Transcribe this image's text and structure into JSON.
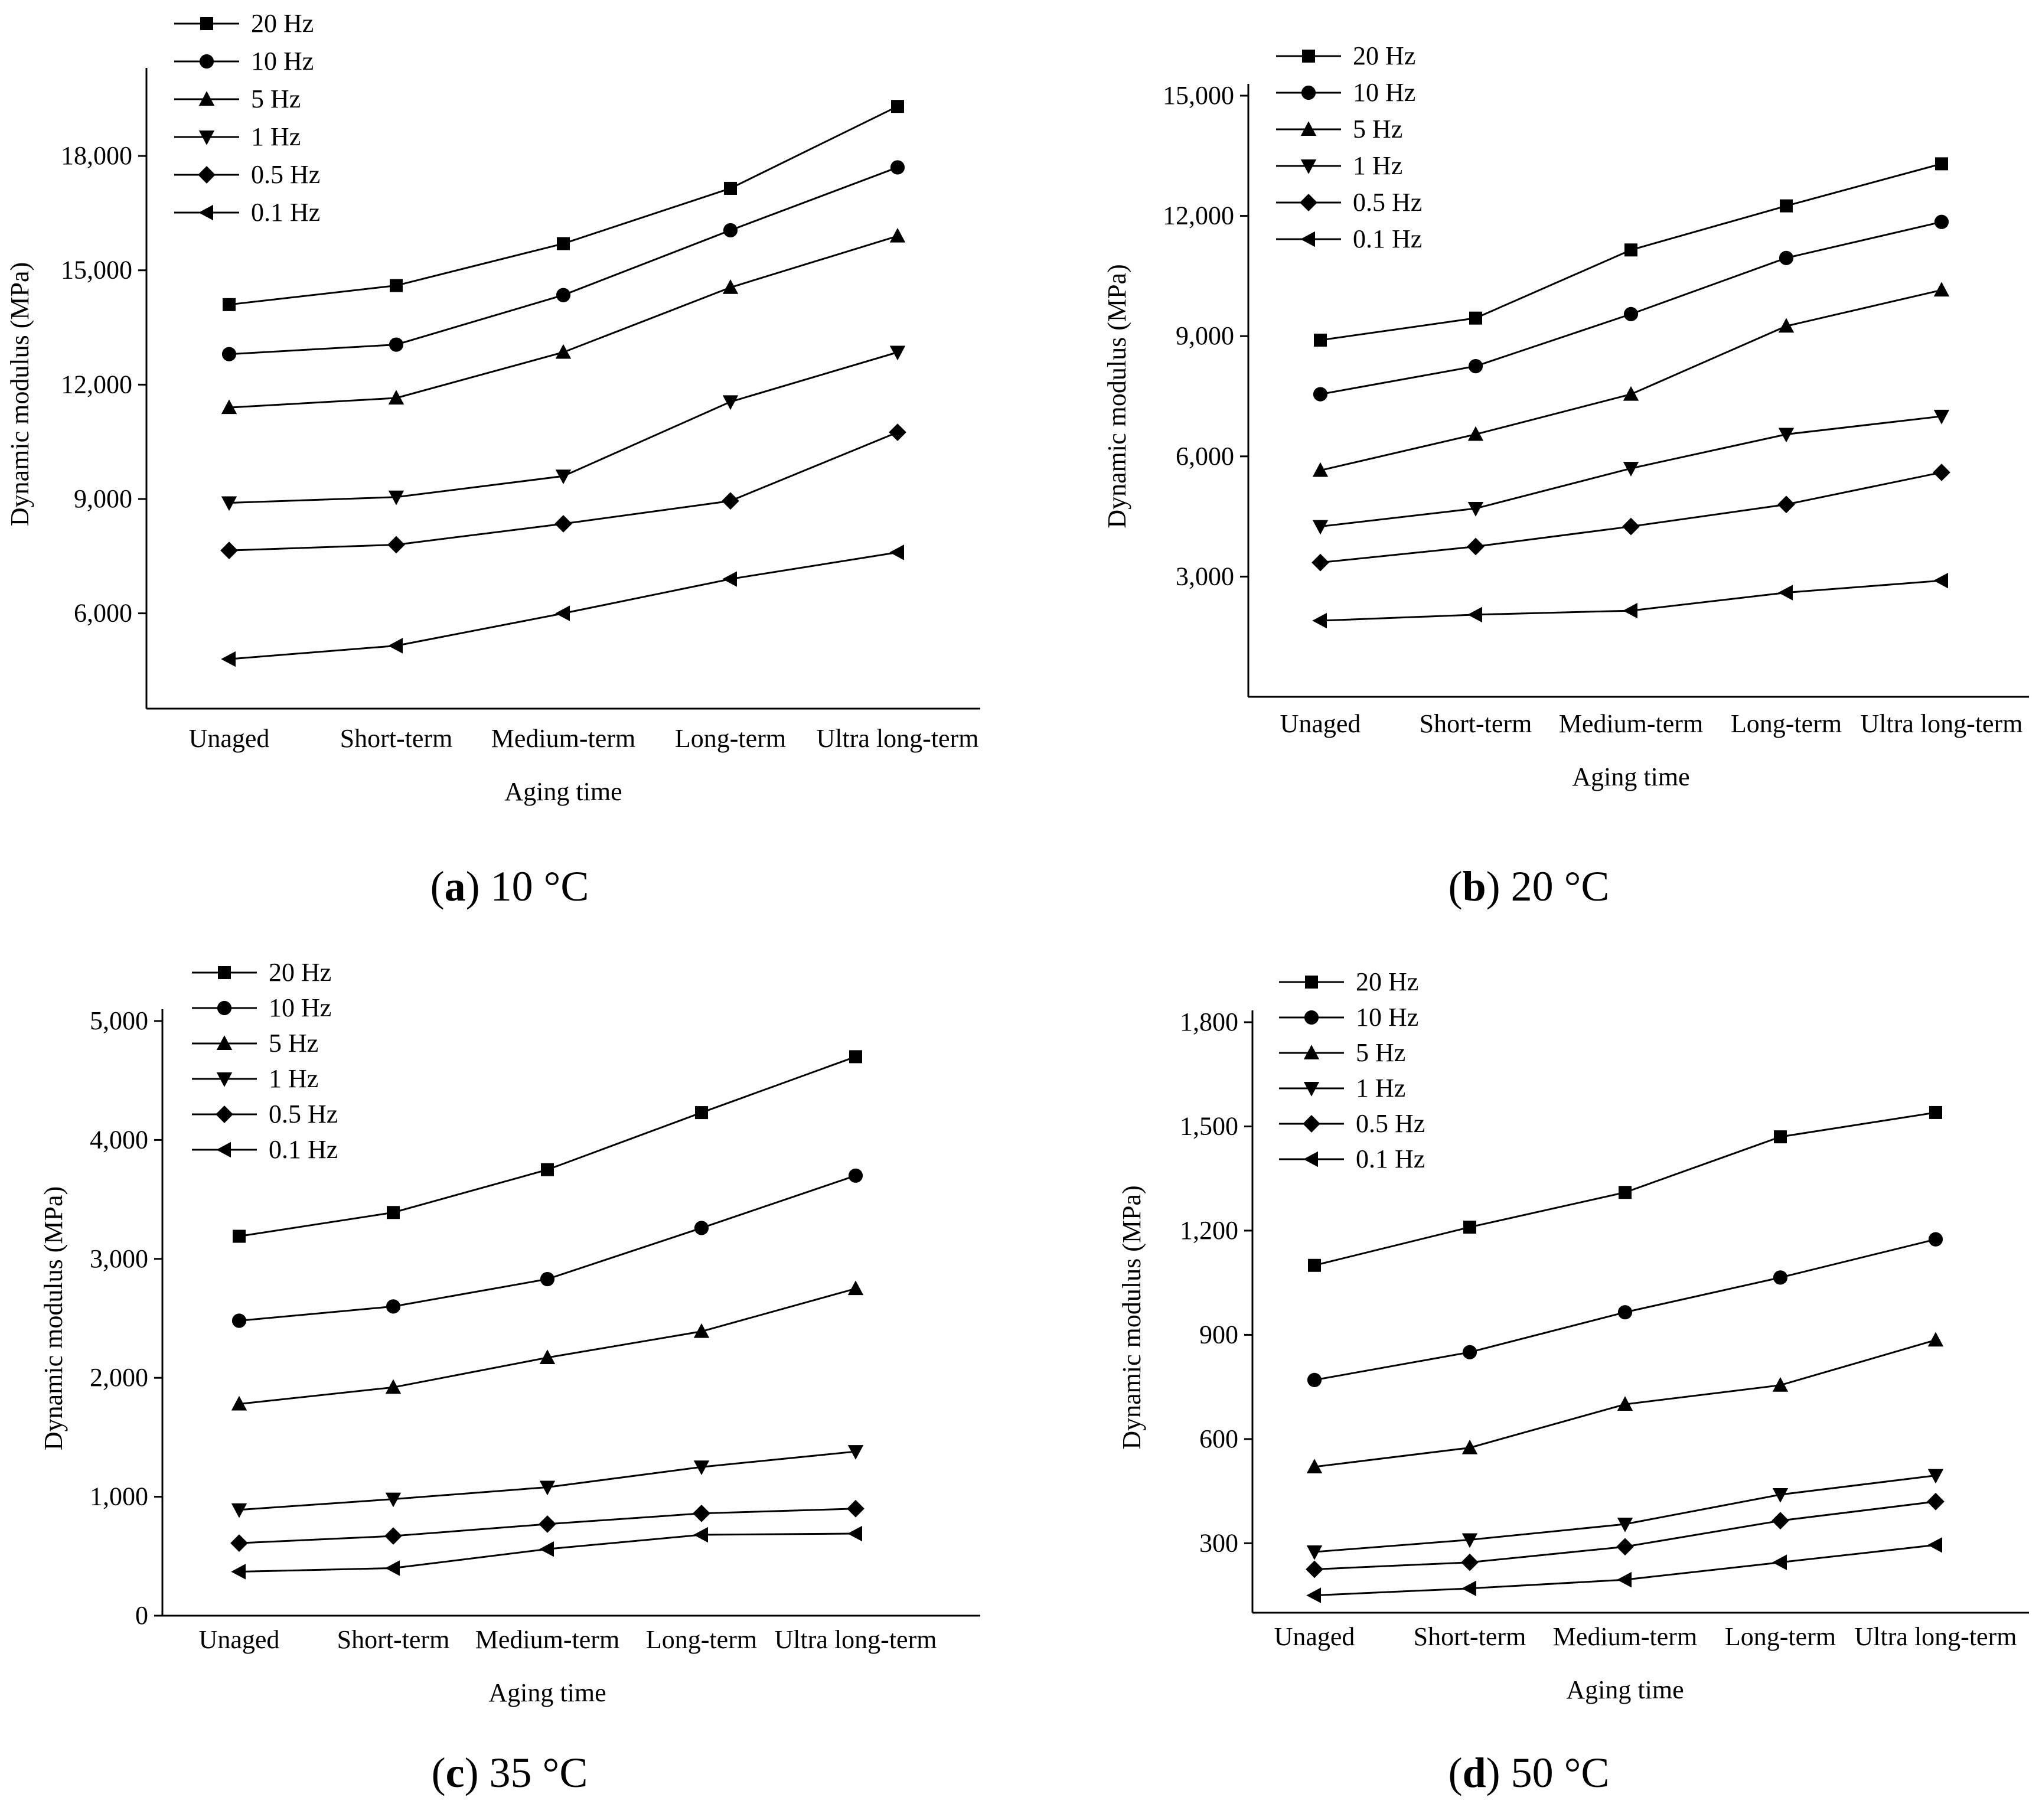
{
  "categories": [
    "Unaged",
    "Short-term",
    "Medium-term",
    "Long-term",
    "Ultra long-term"
  ],
  "chart_data": [
    {
      "type": "line",
      "panel_label": "a",
      "caption_text": "10 °C",
      "xlabel": "Aging time",
      "ylabel": "Dynamic modulus (MPa)",
      "ylim": [
        3500,
        20000
      ],
      "yticks": [
        "6,000",
        "9,000",
        "12,000",
        "15,000",
        "18,000"
      ],
      "ytick_values": [
        6000,
        9000,
        12000,
        15000,
        18000
      ],
      "legend_position": "top-left",
      "series": [
        {
          "name": "20 Hz",
          "marker": "square",
          "values": [
            14100,
            14600,
            15700,
            17150,
            19300
          ]
        },
        {
          "name": "10 Hz",
          "marker": "circle",
          "values": [
            12800,
            13050,
            14350,
            16050,
            17700
          ]
        },
        {
          "name": "5 Hz",
          "marker": "triangle-up",
          "values": [
            11400,
            11650,
            12850,
            14550,
            15900
          ]
        },
        {
          "name": "1 Hz",
          "marker": "triangle-down",
          "values": [
            8900,
            9050,
            9600,
            11550,
            12850
          ]
        },
        {
          "name": "0.5 Hz",
          "marker": "diamond",
          "values": [
            7650,
            7800,
            8350,
            8950,
            10750
          ]
        },
        {
          "name": "0.1 Hz",
          "marker": "triangle-left",
          "values": [
            4800,
            5150,
            6000,
            6900,
            7600
          ]
        }
      ]
    },
    {
      "type": "line",
      "panel_label": "b",
      "caption_text": "20 °C",
      "xlabel": "Aging time",
      "ylabel": "Dynamic modulus (MPa)",
      "ylim": [
        0,
        15000
      ],
      "yticks": [
        "3,000",
        "6,000",
        "9,000",
        "12,000",
        "15,000"
      ],
      "ytick_values": [
        3000,
        6000,
        9000,
        12000,
        15000
      ],
      "legend_position": "top-left",
      "series": [
        {
          "name": "20 Hz",
          "marker": "square",
          "values": [
            8900,
            9450,
            11150,
            12250,
            13300
          ]
        },
        {
          "name": "10 Hz",
          "marker": "circle",
          "values": [
            7550,
            8250,
            9550,
            10950,
            11850
          ]
        },
        {
          "name": "5 Hz",
          "marker": "triangle-up",
          "values": [
            5650,
            6550,
            7550,
            9250,
            10150
          ]
        },
        {
          "name": "1 Hz",
          "marker": "triangle-down",
          "values": [
            4250,
            4700,
            5700,
            6550,
            7000
          ]
        },
        {
          "name": "0.5 Hz",
          "marker": "diamond",
          "values": [
            3350,
            3750,
            4250,
            4800,
            5600
          ]
        },
        {
          "name": "0.1 Hz",
          "marker": "triangle-left",
          "values": [
            1900,
            2050,
            2150,
            2600,
            2900
          ]
        }
      ]
    },
    {
      "type": "line",
      "panel_label": "c",
      "caption_text": "35 °C",
      "xlabel": "Aging time",
      "ylabel": "Dynamic modulus (MPa)",
      "ylim": [
        0,
        5000
      ],
      "yticks": [
        "0",
        "1,000",
        "2,000",
        "3,000",
        "4,000",
        "5,000"
      ],
      "ytick_values": [
        0,
        1000,
        2000,
        3000,
        4000,
        5000
      ],
      "legend_position": "top-left",
      "series": [
        {
          "name": "20 Hz",
          "marker": "square",
          "values": [
            3190,
            3390,
            3750,
            4230,
            4700
          ]
        },
        {
          "name": "10 Hz",
          "marker": "circle",
          "values": [
            2480,
            2600,
            2830,
            3260,
            3700
          ]
        },
        {
          "name": "5 Hz",
          "marker": "triangle-up",
          "values": [
            1780,
            1920,
            2170,
            2390,
            2750
          ]
        },
        {
          "name": "1 Hz",
          "marker": "triangle-down",
          "values": [
            890,
            980,
            1080,
            1250,
            1380
          ]
        },
        {
          "name": "0.5 Hz",
          "marker": "diamond",
          "values": [
            610,
            670,
            770,
            860,
            900
          ]
        },
        {
          "name": "0.1 Hz",
          "marker": "triangle-left",
          "values": [
            370,
            400,
            560,
            680,
            690
          ]
        }
      ]
    },
    {
      "type": "line",
      "panel_label": "d",
      "caption_text": "50 °C",
      "xlabel": "Aging time",
      "ylabel": "Dynamic modulus (MPa)",
      "ylim": [
        100,
        1800
      ],
      "yticks": [
        "300",
        "600",
        "900",
        "1,200",
        "1,500",
        "1,800"
      ],
      "ytick_values": [
        300,
        600,
        900,
        1200,
        1500,
        1800
      ],
      "legend_position": "top-left",
      "series": [
        {
          "name": "20 Hz",
          "marker": "square",
          "values": [
            1100,
            1210,
            1310,
            1470,
            1540
          ]
        },
        {
          "name": "10 Hz",
          "marker": "circle",
          "values": [
            770,
            850,
            965,
            1065,
            1175
          ]
        },
        {
          "name": "5 Hz",
          "marker": "triangle-up",
          "values": [
            520,
            575,
            700,
            755,
            885
          ]
        },
        {
          "name": "1 Hz",
          "marker": "triangle-down",
          "values": [
            275,
            310,
            355,
            440,
            495
          ]
        },
        {
          "name": "0.5 Hz",
          "marker": "diamond",
          "values": [
            225,
            245,
            290,
            365,
            420
          ]
        },
        {
          "name": "0.1 Hz",
          "marker": "triangle-left",
          "values": [
            150,
            170,
            195,
            245,
            295
          ]
        }
      ]
    }
  ]
}
